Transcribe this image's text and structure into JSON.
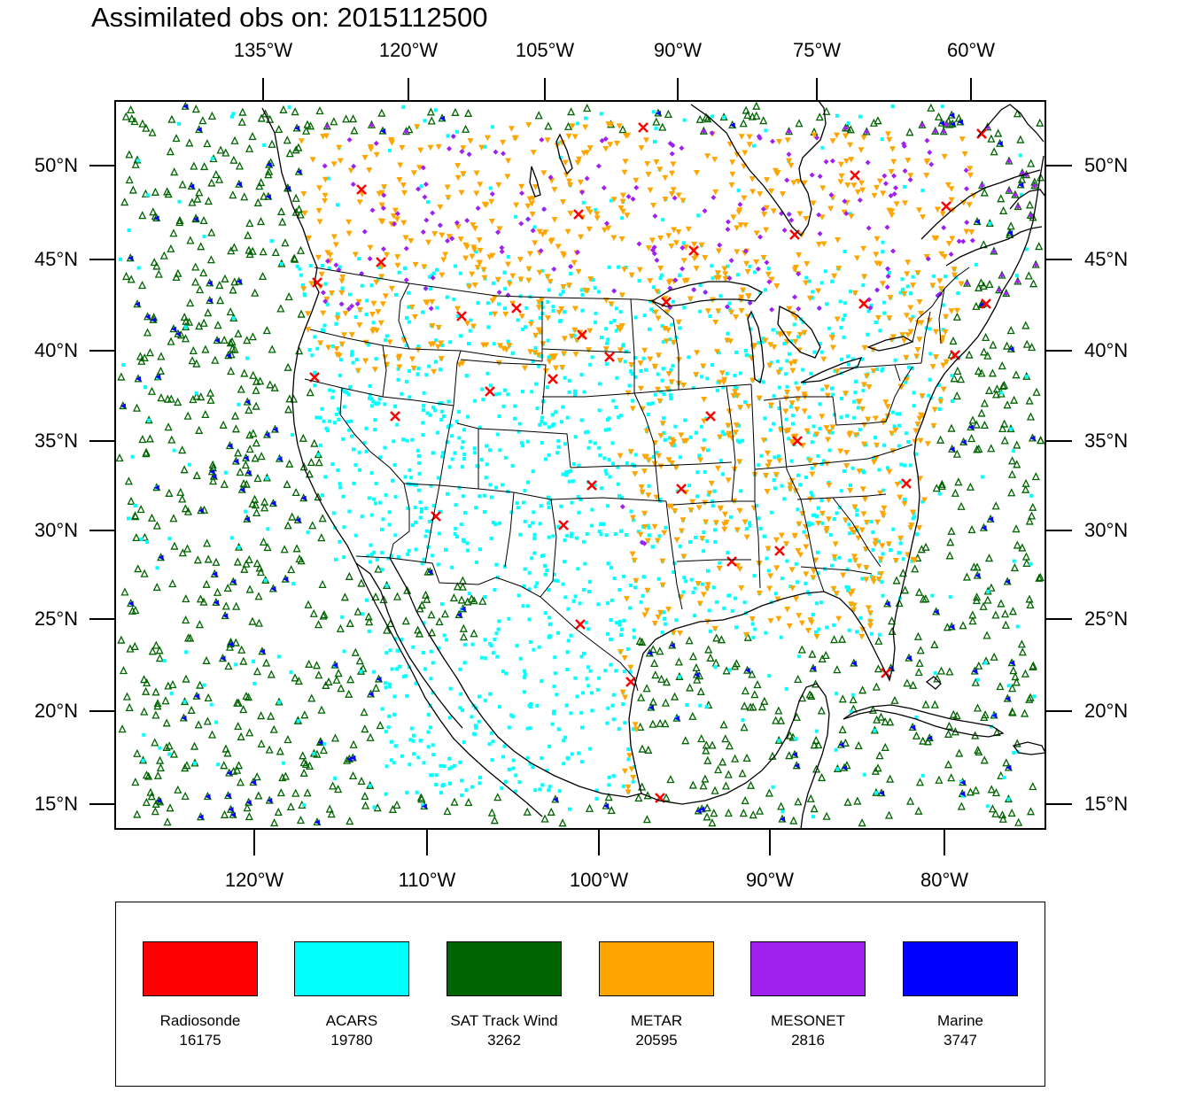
{
  "title": "Assimilated obs on: 2015112500",
  "axes": {
    "top_lon_labels": [
      "135°W",
      "120°W",
      "105°W",
      "90°W",
      "75°W",
      "60°W"
    ],
    "bottom_lon_labels": [
      "120°W",
      "110°W",
      "100°W",
      "90°W",
      "80°W"
    ],
    "lat_labels": [
      "50°N",
      "45°N",
      "40°N",
      "35°N",
      "30°N",
      "25°N",
      "20°N",
      "15°N"
    ]
  },
  "legend": [
    {
      "name": "Radiosonde",
      "count": "16175",
      "color": "#ff0000",
      "marker": "x"
    },
    {
      "name": "ACARS",
      "count": "19780",
      "color": "#00ffff",
      "marker": "square"
    },
    {
      "name": "SAT Track Wind",
      "count": "3262",
      "color": "#006400",
      "marker": "triangle-up-open"
    },
    {
      "name": "METAR",
      "count": "20595",
      "color": "#ffa500",
      "marker": "triangle-down"
    },
    {
      "name": "MESONET",
      "count": "2816",
      "color": "#a020f0",
      "marker": "diamond"
    },
    {
      "name": "Marine",
      "count": "3747",
      "color": "#0000ff",
      "marker": "triangle-left"
    }
  ],
  "map_region": {
    "lon_range": [
      "128°W",
      "74°W"
    ],
    "lat_range": [
      "14°N",
      "53°N"
    ],
    "projection": "lambert-conformal",
    "boundaries": [
      "coastlines",
      "US state borders"
    ]
  }
}
